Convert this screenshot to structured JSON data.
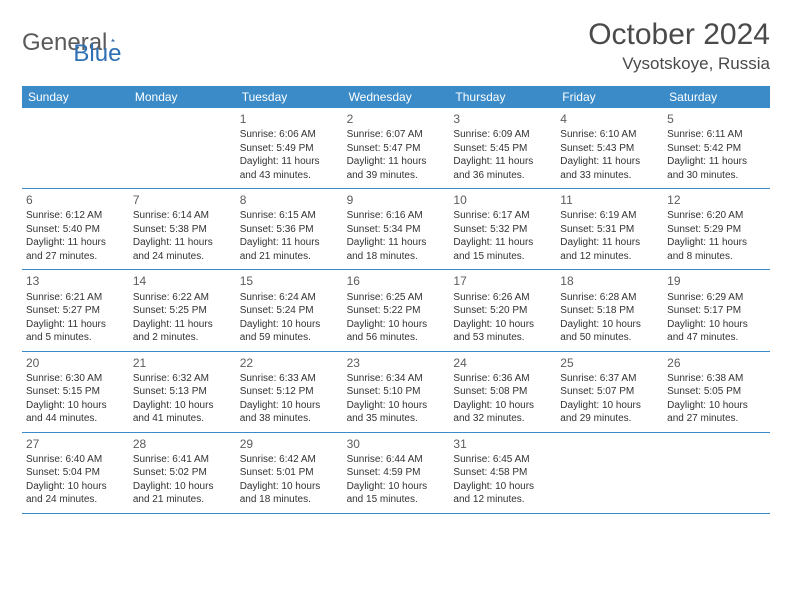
{
  "logo": {
    "text1": "General",
    "text2": "Blue"
  },
  "title": "October 2024",
  "location": "Vysotskoye, Russia",
  "header_bg": "#3b8bc9",
  "header_fg": "#ffffff",
  "divider_color": "#3b8bc9",
  "day_names": [
    "Sunday",
    "Monday",
    "Tuesday",
    "Wednesday",
    "Thursday",
    "Friday",
    "Saturday"
  ],
  "weeks": [
    [
      null,
      null,
      {
        "n": "1",
        "sr": "6:06 AM",
        "ss": "5:49 PM",
        "dl": "11 hours and 43 minutes."
      },
      {
        "n": "2",
        "sr": "6:07 AM",
        "ss": "5:47 PM",
        "dl": "11 hours and 39 minutes."
      },
      {
        "n": "3",
        "sr": "6:09 AM",
        "ss": "5:45 PM",
        "dl": "11 hours and 36 minutes."
      },
      {
        "n": "4",
        "sr": "6:10 AM",
        "ss": "5:43 PM",
        "dl": "11 hours and 33 minutes."
      },
      {
        "n": "5",
        "sr": "6:11 AM",
        "ss": "5:42 PM",
        "dl": "11 hours and 30 minutes."
      }
    ],
    [
      {
        "n": "6",
        "sr": "6:12 AM",
        "ss": "5:40 PM",
        "dl": "11 hours and 27 minutes."
      },
      {
        "n": "7",
        "sr": "6:14 AM",
        "ss": "5:38 PM",
        "dl": "11 hours and 24 minutes."
      },
      {
        "n": "8",
        "sr": "6:15 AM",
        "ss": "5:36 PM",
        "dl": "11 hours and 21 minutes."
      },
      {
        "n": "9",
        "sr": "6:16 AM",
        "ss": "5:34 PM",
        "dl": "11 hours and 18 minutes."
      },
      {
        "n": "10",
        "sr": "6:17 AM",
        "ss": "5:32 PM",
        "dl": "11 hours and 15 minutes."
      },
      {
        "n": "11",
        "sr": "6:19 AM",
        "ss": "5:31 PM",
        "dl": "11 hours and 12 minutes."
      },
      {
        "n": "12",
        "sr": "6:20 AM",
        "ss": "5:29 PM",
        "dl": "11 hours and 8 minutes."
      }
    ],
    [
      {
        "n": "13",
        "sr": "6:21 AM",
        "ss": "5:27 PM",
        "dl": "11 hours and 5 minutes."
      },
      {
        "n": "14",
        "sr": "6:22 AM",
        "ss": "5:25 PM",
        "dl": "11 hours and 2 minutes."
      },
      {
        "n": "15",
        "sr": "6:24 AM",
        "ss": "5:24 PM",
        "dl": "10 hours and 59 minutes."
      },
      {
        "n": "16",
        "sr": "6:25 AM",
        "ss": "5:22 PM",
        "dl": "10 hours and 56 minutes."
      },
      {
        "n": "17",
        "sr": "6:26 AM",
        "ss": "5:20 PM",
        "dl": "10 hours and 53 minutes."
      },
      {
        "n": "18",
        "sr": "6:28 AM",
        "ss": "5:18 PM",
        "dl": "10 hours and 50 minutes."
      },
      {
        "n": "19",
        "sr": "6:29 AM",
        "ss": "5:17 PM",
        "dl": "10 hours and 47 minutes."
      }
    ],
    [
      {
        "n": "20",
        "sr": "6:30 AM",
        "ss": "5:15 PM",
        "dl": "10 hours and 44 minutes."
      },
      {
        "n": "21",
        "sr": "6:32 AM",
        "ss": "5:13 PM",
        "dl": "10 hours and 41 minutes."
      },
      {
        "n": "22",
        "sr": "6:33 AM",
        "ss": "5:12 PM",
        "dl": "10 hours and 38 minutes."
      },
      {
        "n": "23",
        "sr": "6:34 AM",
        "ss": "5:10 PM",
        "dl": "10 hours and 35 minutes."
      },
      {
        "n": "24",
        "sr": "6:36 AM",
        "ss": "5:08 PM",
        "dl": "10 hours and 32 minutes."
      },
      {
        "n": "25",
        "sr": "6:37 AM",
        "ss": "5:07 PM",
        "dl": "10 hours and 29 minutes."
      },
      {
        "n": "26",
        "sr": "6:38 AM",
        "ss": "5:05 PM",
        "dl": "10 hours and 27 minutes."
      }
    ],
    [
      {
        "n": "27",
        "sr": "6:40 AM",
        "ss": "5:04 PM",
        "dl": "10 hours and 24 minutes."
      },
      {
        "n": "28",
        "sr": "6:41 AM",
        "ss": "5:02 PM",
        "dl": "10 hours and 21 minutes."
      },
      {
        "n": "29",
        "sr": "6:42 AM",
        "ss": "5:01 PM",
        "dl": "10 hours and 18 minutes."
      },
      {
        "n": "30",
        "sr": "6:44 AM",
        "ss": "4:59 PM",
        "dl": "10 hours and 15 minutes."
      },
      {
        "n": "31",
        "sr": "6:45 AM",
        "ss": "4:58 PM",
        "dl": "10 hours and 12 minutes."
      },
      null,
      null
    ]
  ],
  "labels": {
    "sunrise": "Sunrise:",
    "sunset": "Sunset:",
    "daylight": "Daylight:"
  }
}
